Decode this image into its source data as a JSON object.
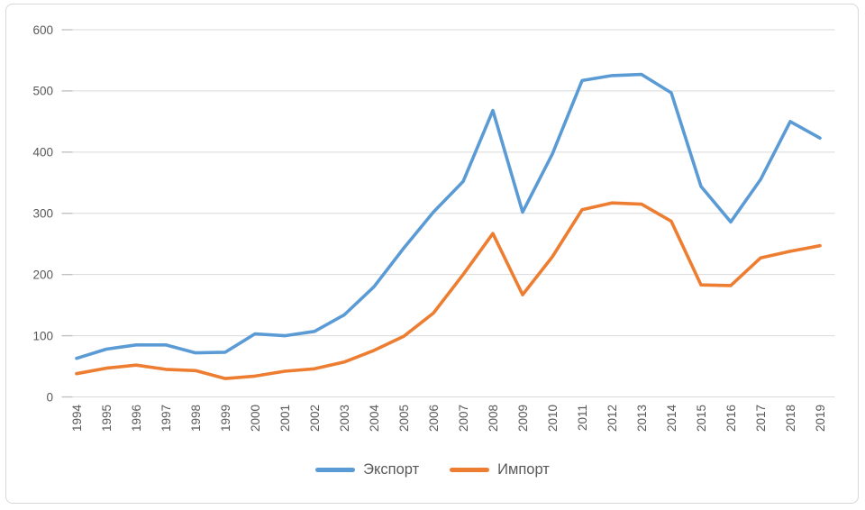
{
  "chart_data": {
    "type": "line",
    "title": "",
    "xlabel": "",
    "ylabel": "",
    "categories": [
      "1994",
      "1995",
      "1996",
      "1997",
      "1998",
      "1999",
      "2000",
      "2001",
      "2002",
      "2003",
      "2004",
      "2005",
      "2006",
      "2007",
      "2008",
      "2009",
      "2010",
      "2011",
      "2012",
      "2013",
      "2014",
      "2015",
      "2016",
      "2017",
      "2018",
      "2019"
    ],
    "series": [
      {
        "name": "Экспорт",
        "color": "#5B9BD5",
        "values": [
          63,
          78,
          85,
          85,
          72,
          73,
          103,
          100,
          107,
          134,
          180,
          243,
          302,
          352,
          468,
          302,
          397,
          517,
          525,
          527,
          497,
          344,
          286,
          355,
          450,
          423
        ]
      },
      {
        "name": "Импорт",
        "color": "#ED7D31",
        "values": [
          38,
          47,
          52,
          45,
          43,
          30,
          34,
          42,
          46,
          57,
          76,
          99,
          137,
          200,
          267,
          167,
          229,
          306,
          317,
          315,
          287,
          183,
          182,
          227,
          238,
          247
        ]
      }
    ],
    "y_axis": {
      "min": 0,
      "max": 600,
      "step": 100,
      "tick_labels": [
        "0",
        "100",
        "200",
        "300",
        "400",
        "500",
        "600"
      ]
    },
    "grid": true,
    "legend_position": "bottom",
    "x_label_rotation_deg": -90
  },
  "style": {
    "gridline_color": "#D9D9D9",
    "tick_stub_color": "#BFBFBF",
    "axis_text_color": "#595959",
    "line_width": 3.6
  }
}
